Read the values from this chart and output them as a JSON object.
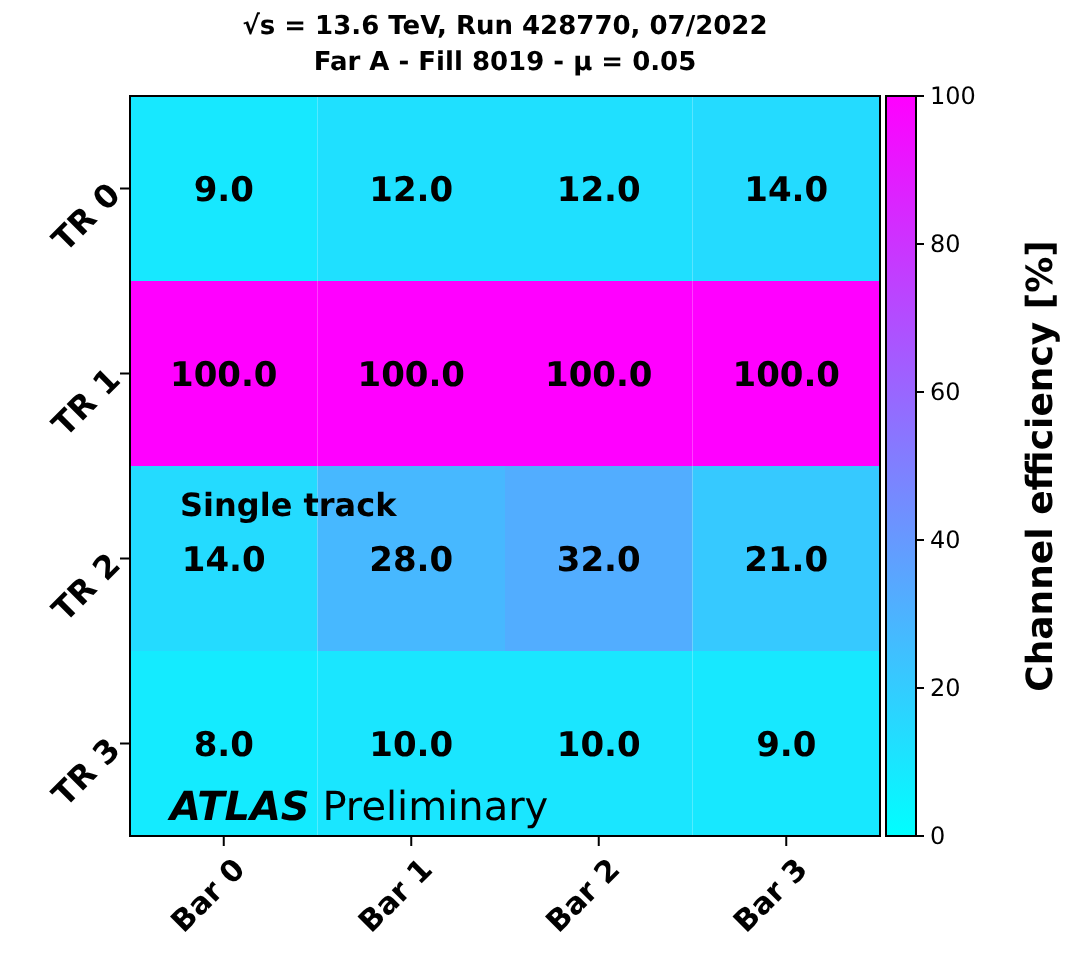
{
  "chart_data": {
    "type": "heatmap",
    "title": "√s = 13.6 TeV, Run 428770,  07/2022",
    "subtitle": "Far A - Fill 8019 - μ = 0.05",
    "clabel": "Channel efficiency [%]",
    "categories": [
      "Bar 0",
      "Bar 1",
      "Bar 2",
      "Bar 3"
    ],
    "y_categories": [
      "TR 0",
      "TR 1",
      "TR 2",
      "TR 3"
    ],
    "cells": [
      [
        9,
        12,
        12,
        14
      ],
      [
        100,
        100,
        100,
        100
      ],
      [
        14,
        28,
        32,
        21
      ],
      [
        8,
        10,
        10,
        9
      ]
    ],
    "cell_labels": [
      [
        "9.0",
        "12.0",
        "12.0",
        "14.0"
      ],
      [
        "100.0",
        "100.0",
        "100.0",
        "100.0"
      ],
      [
        "14.0",
        "28.0",
        "32.0",
        "21.0"
      ],
      [
        "8.0",
        "10.0",
        "10.0",
        "9.0"
      ]
    ],
    "clim": [
      0,
      100
    ],
    "cticks": [
      0,
      20,
      40,
      60,
      80,
      100
    ],
    "annotations": [
      "Single track",
      "ATLAS Preliminary"
    ]
  }
}
